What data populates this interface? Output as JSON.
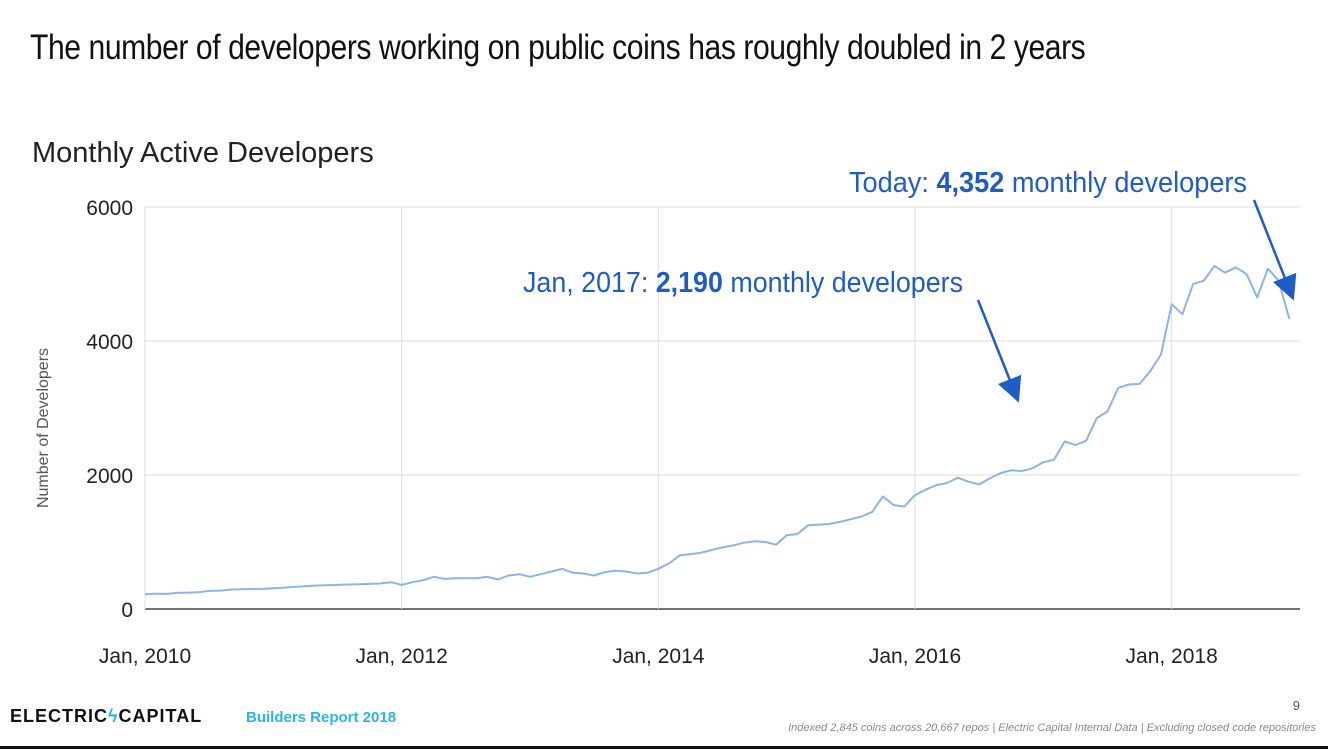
{
  "slide": {
    "title": "The number of developers working on public coins has roughly doubled in 2 years"
  },
  "chart_data": {
    "type": "line",
    "title": "Monthly Active Developers",
    "xlabel": "",
    "ylabel": "Number of Developers",
    "x_ticks": [
      "Jan, 2010",
      "Jan, 2012",
      "Jan, 2014",
      "Jan, 2016",
      "Jan, 2018"
    ],
    "y_ticks": [
      0,
      2000,
      4000,
      6000
    ],
    "ylim": [
      0,
      6000
    ],
    "xlim": [
      "2010-01",
      "2019-01"
    ],
    "grid": true,
    "color": "#8ab4ea",
    "series": [
      {
        "x": [
          "2010-01",
          "2010-02",
          "2010-03",
          "2010-04",
          "2010-05",
          "2010-06",
          "2010-07",
          "2010-08",
          "2010-09",
          "2010-10",
          "2010-11",
          "2010-12",
          "2011-01",
          "2011-02",
          "2011-03",
          "2011-04",
          "2011-05",
          "2011-06",
          "2011-07",
          "2011-08",
          "2011-09",
          "2011-10",
          "2011-11",
          "2011-12",
          "2012-01",
          "2012-02",
          "2012-03",
          "2012-04",
          "2012-05",
          "2012-06",
          "2012-07",
          "2012-08",
          "2012-09",
          "2012-10",
          "2012-11",
          "2012-12",
          "2013-01",
          "2013-02",
          "2013-03",
          "2013-04",
          "2013-05",
          "2013-06",
          "2013-07",
          "2013-08",
          "2013-09",
          "2013-10",
          "2013-11",
          "2013-12",
          "2014-01",
          "2014-02",
          "2014-03",
          "2014-04",
          "2014-05",
          "2014-06",
          "2014-07",
          "2014-08",
          "2014-09",
          "2014-10",
          "2014-11",
          "2014-12",
          "2015-01",
          "2015-02",
          "2015-03",
          "2015-04",
          "2015-05",
          "2015-06",
          "2015-07",
          "2015-08",
          "2015-09",
          "2015-10",
          "2015-11",
          "2015-12",
          "2016-01",
          "2016-02",
          "2016-03",
          "2016-04",
          "2016-05",
          "2016-06",
          "2016-07",
          "2016-08",
          "2016-09",
          "2016-10",
          "2016-11",
          "2016-12",
          "2017-01",
          "2017-02",
          "2017-03",
          "2017-04",
          "2017-05",
          "2017-06",
          "2017-07",
          "2017-08",
          "2017-09",
          "2017-10",
          "2017-11",
          "2017-12",
          "2018-01",
          "2018-02",
          "2018-03",
          "2018-04",
          "2018-05",
          "2018-06",
          "2018-07",
          "2018-08",
          "2018-09",
          "2018-10",
          "2018-11",
          "2018-12"
        ],
        "y": [
          220,
          230,
          225,
          240,
          245,
          250,
          270,
          275,
          290,
          295,
          300,
          300,
          310,
          320,
          330,
          340,
          350,
          355,
          360,
          365,
          370,
          375,
          380,
          400,
          360,
          400,
          430,
          480,
          450,
          460,
          460,
          460,
          480,
          440,
          500,
          520,
          480,
          520,
          560,
          600,
          540,
          530,
          500,
          550,
          570,
          560,
          530,
          540,
          600,
          680,
          800,
          820,
          840,
          880,
          920,
          950,
          990,
          1010,
          1000,
          960,
          1100,
          1120,
          1250,
          1260,
          1270,
          1300,
          1340,
          1380,
          1450,
          1680,
          1550,
          1530,
          1700,
          1780,
          1850,
          1880,
          1960,
          1900,
          1860,
          1950,
          2030,
          2070,
          2060,
          2100,
          2190,
          2230,
          2500,
          2450,
          2510,
          2850,
          2950,
          3300,
          3350,
          3360,
          3550,
          3800,
          4550,
          4400,
          4850,
          4900,
          5120,
          5020,
          5100,
          5000,
          4650,
          5080,
          4900,
          4330
        ]
      }
    ],
    "annotations": [
      {
        "prefix": "Jan, 2017: ",
        "value": "2,190",
        "suffix": " monthly developers",
        "target_x": "2017-01",
        "target_y": 2190
      },
      {
        "prefix": "Today: ",
        "value": "4,352",
        "suffix": " monthly developers",
        "target_x": "2019-01",
        "target_y": 4352
      }
    ],
    "annotation_color": "#1f5cc4"
  },
  "footer": {
    "logo_left": "ELECTRIC",
    "logo_bolt": "ϟ",
    "logo_right": "CAPITAL",
    "report": "Builders Report 2018",
    "page": "9",
    "note": "Indexed 2,845 coins across 20,667 repos | Electric Capital Internal Data | Excluding closed code repositories"
  }
}
